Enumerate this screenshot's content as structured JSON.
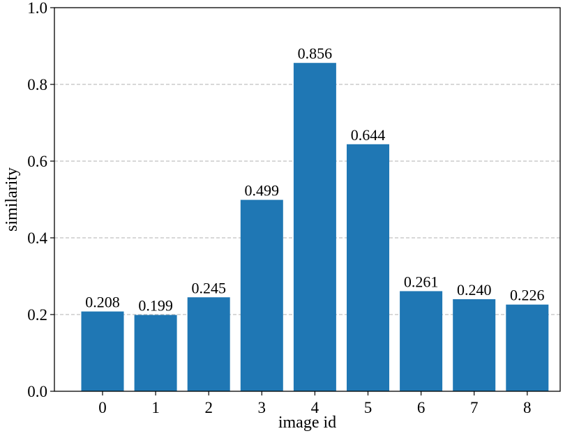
{
  "chart_data": {
    "type": "bar",
    "categories": [
      "0",
      "1",
      "2",
      "3",
      "4",
      "5",
      "6",
      "7",
      "8"
    ],
    "values": [
      0.208,
      0.199,
      0.245,
      0.499,
      0.856,
      0.644,
      0.261,
      0.24,
      0.226
    ],
    "value_labels": [
      "0.208",
      "0.199",
      "0.245",
      "0.499",
      "0.856",
      "0.644",
      "0.261",
      "0.240",
      "0.226"
    ],
    "title": "",
    "xlabel": "image id",
    "ylabel": "similarity",
    "ylim": [
      0.0,
      1.0
    ],
    "yticks": [
      0.0,
      0.2,
      0.4,
      0.6,
      0.8,
      1.0
    ],
    "ytick_labels": [
      "0.0",
      "0.2",
      "0.4",
      "0.6",
      "0.8",
      "1.0"
    ],
    "grid": "y-axis dashed",
    "bar_color": "#1f77b4",
    "grid_color": "#b0b0b0",
    "legend": "none"
  }
}
